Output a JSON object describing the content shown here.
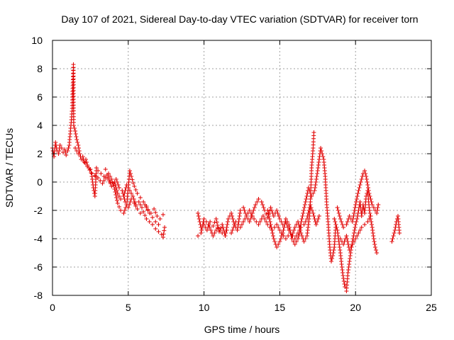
{
  "chart_data": {
    "type": "scatter",
    "title": "Day 107 of 2021, Sidereal Day-to-day VTEC variation (SDTVAR) for receiver torn",
    "xlabel": "GPS time / hours",
    "ylabel": "SDTVAR / TECUs",
    "xlim": [
      0,
      25
    ],
    "ylim": [
      -8,
      10
    ],
    "xticks": [
      "0",
      "5",
      "10",
      "15",
      "20",
      "25"
    ],
    "yticks": [
      "-8",
      "-6",
      "-4",
      "-2",
      "0",
      "2",
      "4",
      "6",
      "8",
      "10"
    ],
    "grid": true,
    "marker": "+",
    "color": "#e00000",
    "series": [
      {
        "name": "SDTVAR",
        "segments": [
          [
            [
              0.0,
              2.4
            ],
            [
              0.1,
              1.8
            ],
            [
              0.2,
              2.8
            ],
            [
              0.3,
              2.2
            ],
            [
              0.4,
              2.0
            ],
            [
              0.5,
              2.6
            ],
            [
              0.6,
              2.4
            ],
            [
              0.7,
              2.1
            ],
            [
              0.8,
              2.3
            ],
            [
              0.9,
              1.9
            ],
            [
              1.0,
              2.2
            ],
            [
              1.1,
              2.6
            ],
            [
              1.15,
              3.2
            ],
            [
              1.2,
              3.8
            ],
            [
              1.25,
              4.4
            ],
            [
              1.3,
              5.2
            ],
            [
              1.32,
              6.2
            ],
            [
              1.35,
              7.0
            ],
            [
              1.38,
              8.3
            ],
            [
              1.4,
              4.0
            ],
            [
              1.5,
              3.6
            ],
            [
              1.6,
              3.0
            ],
            [
              1.7,
              2.6
            ],
            [
              1.8,
              2.0
            ],
            [
              1.9,
              1.6
            ],
            [
              2.0,
              1.8
            ],
            [
              2.1,
              1.4
            ],
            [
              2.2,
              1.6
            ],
            [
              2.3,
              1.2
            ],
            [
              2.4,
              1.0
            ],
            [
              2.5,
              0.9
            ],
            [
              2.6,
              0.4
            ],
            [
              2.7,
              -0.4
            ],
            [
              2.8,
              -1.0
            ],
            [
              2.9,
              1.0
            ],
            [
              3.0,
              0.8
            ],
            [
              3.2,
              0.6
            ],
            [
              3.4,
              0.4
            ],
            [
              3.6,
              0.3
            ],
            [
              3.8,
              0.0
            ],
            [
              4.0,
              -0.1
            ],
            [
              4.2,
              0.2
            ],
            [
              4.4,
              -0.4
            ],
            [
              4.6,
              -0.6
            ],
            [
              4.8,
              -1.4
            ],
            [
              5.0,
              -1.8
            ],
            [
              5.2,
              -1.2
            ],
            [
              5.4,
              -1.5
            ],
            [
              5.6,
              -1.9
            ],
            [
              5.8,
              -2.2
            ],
            [
              6.0,
              -2.1
            ],
            [
              6.2,
              -2.6
            ],
            [
              6.4,
              -2.8
            ],
            [
              6.6,
              -3.0
            ],
            [
              6.8,
              -3.3
            ],
            [
              7.0,
              -3.5
            ],
            [
              7.2,
              -3.7
            ],
            [
              7.3,
              -3.9
            ],
            [
              7.4,
              -3.2
            ]
          ],
          [
            [
              1.5,
              2.4
            ],
            [
              1.7,
              2.0
            ],
            [
              2.0,
              1.6
            ],
            [
              2.3,
              1.1
            ],
            [
              2.6,
              0.6
            ],
            [
              3.0,
              0.3
            ],
            [
              3.3,
              -0.1
            ],
            [
              3.6,
              0.5
            ],
            [
              3.9,
              -0.3
            ],
            [
              4.1,
              0.0
            ],
            [
              4.3,
              -0.8
            ],
            [
              4.5,
              -1.2
            ],
            [
              4.7,
              -1.0
            ],
            [
              4.9,
              -0.2
            ],
            [
              5.1,
              -0.6
            ],
            [
              5.3,
              -1.0
            ],
            [
              5.5,
              -1.6
            ],
            [
              5.7,
              -1.4
            ],
            [
              5.9,
              -1.8
            ],
            [
              6.1,
              -1.6
            ],
            [
              6.3,
              -2.0
            ],
            [
              6.5,
              -2.2
            ],
            [
              6.7,
              -1.9
            ],
            [
              6.9,
              -2.4
            ],
            [
              7.1,
              -2.6
            ],
            [
              7.3,
              -2.3
            ]
          ],
          [
            [
              3.5,
              0.9
            ],
            [
              3.7,
              0.6
            ],
            [
              3.9,
              0.2
            ],
            [
              4.1,
              -0.5
            ],
            [
              4.3,
              -1.5
            ],
            [
              4.5,
              -2.0
            ],
            [
              4.7,
              -2.2
            ],
            [
              4.9,
              -1.6
            ],
            [
              5.1,
              0.8
            ],
            [
              5.2,
              0.4
            ],
            [
              5.4,
              -0.3
            ],
            [
              5.6,
              -0.8
            ],
            [
              5.8,
              -1.1
            ],
            [
              6.0,
              -1.4
            ],
            [
              6.2,
              -1.7
            ],
            [
              6.4,
              -2.2
            ],
            [
              6.6,
              -2.5
            ],
            [
              6.8,
              -2.8
            ],
            [
              7.0,
              -3.0
            ]
          ],
          [
            [
              9.6,
              -2.2
            ],
            [
              9.8,
              -3.2
            ],
            [
              10.0,
              -3.0
            ],
            [
              10.2,
              -3.4
            ],
            [
              10.4,
              -2.8
            ],
            [
              10.6,
              -3.1
            ],
            [
              10.8,
              -2.6
            ],
            [
              11.0,
              -3.5
            ],
            [
              11.2,
              -3.0
            ],
            [
              11.4,
              -3.8
            ],
            [
              11.6,
              -2.6
            ],
            [
              11.8,
              -2.2
            ],
            [
              12.0,
              -3.0
            ],
            [
              12.2,
              -3.4
            ],
            [
              12.4,
              -2.0
            ],
            [
              12.6,
              -1.8
            ],
            [
              12.8,
              -2.4
            ],
            [
              13.0,
              -2.8
            ],
            [
              13.2,
              -2.2
            ],
            [
              13.4,
              -1.6
            ],
            [
              13.6,
              -1.2
            ],
            [
              13.8,
              -1.4
            ],
            [
              14.0,
              -2.0
            ],
            [
              14.2,
              -2.5
            ],
            [
              14.4,
              -1.8
            ],
            [
              14.6,
              -2.4
            ],
            [
              14.8,
              -2.0
            ],
            [
              15.0,
              -2.6
            ],
            [
              15.2,
              -3.0
            ],
            [
              15.4,
              -2.8
            ],
            [
              15.6,
              -3.4
            ],
            [
              15.8,
              -3.8
            ],
            [
              16.0,
              -3.2
            ],
            [
              16.2,
              -2.8
            ],
            [
              16.4,
              -3.6
            ],
            [
              16.6,
              -4.2
            ],
            [
              16.8,
              -3.8
            ],
            [
              17.0,
              -2.0
            ],
            [
              17.1,
              1.0
            ],
            [
              17.2,
              2.4
            ],
            [
              17.25,
              3.5
            ]
          ],
          [
            [
              9.6,
              -3.8
            ],
            [
              9.8,
              -3.6
            ],
            [
              10.0,
              -2.6
            ],
            [
              10.3,
              -3.0
            ],
            [
              10.6,
              -3.8
            ],
            [
              10.9,
              -3.2
            ],
            [
              11.2,
              -3.6
            ],
            [
              11.5,
              -3.4
            ],
            [
              11.8,
              -3.6
            ],
            [
              12.1,
              -2.8
            ],
            [
              12.4,
              -3.2
            ],
            [
              12.7,
              -2.6
            ],
            [
              13.0,
              -2.0
            ],
            [
              13.3,
              -2.6
            ],
            [
              13.6,
              -3.0
            ],
            [
              13.9,
              -2.4
            ],
            [
              14.2,
              -3.0
            ],
            [
              14.5,
              -3.4
            ],
            [
              14.8,
              -3.0
            ],
            [
              15.1,
              -3.6
            ],
            [
              15.4,
              -4.0
            ],
            [
              15.7,
              -3.6
            ],
            [
              16.0,
              -4.0
            ],
            [
              16.3,
              -3.4
            ],
            [
              16.5,
              -2.4
            ],
            [
              16.7,
              -1.4
            ],
            [
              16.9,
              -0.4
            ],
            [
              17.1,
              -1.0
            ],
            [
              17.3,
              -0.6
            ],
            [
              17.5,
              0.8
            ],
            [
              17.7,
              2.4
            ],
            [
              17.9,
              1.6
            ],
            [
              18.0,
              0.4
            ],
            [
              18.1,
              -1.6
            ],
            [
              18.2,
              -3.0
            ],
            [
              18.3,
              -4.6
            ],
            [
              18.4,
              -5.6
            ],
            [
              18.5,
              -5.2
            ],
            [
              18.6,
              -4.6
            ],
            [
              18.7,
              -3.0
            ]
          ],
          [
            [
              14.2,
              -2.0
            ],
            [
              14.4,
              -3.0
            ],
            [
              14.6,
              -4.0
            ],
            [
              14.8,
              -4.6
            ],
            [
              15.0,
              -4.2
            ],
            [
              15.2,
              -3.6
            ],
            [
              15.4,
              -2.6
            ],
            [
              15.6,
              -3.0
            ],
            [
              15.8,
              -4.0
            ],
            [
              16.0,
              -4.4
            ],
            [
              16.2,
              -4.0
            ],
            [
              16.4,
              -3.2
            ],
            [
              16.6,
              -3.0
            ],
            [
              16.8,
              -2.6
            ],
            [
              17.0,
              -1.6
            ],
            [
              17.2,
              -2.2
            ],
            [
              17.4,
              -3.0
            ],
            [
              17.6,
              -2.4
            ]
          ],
          [
            [
              18.6,
              -2.6
            ],
            [
              18.8,
              -3.4
            ],
            [
              19.0,
              -5.0
            ],
            [
              19.1,
              -6.0
            ],
            [
              19.2,
              -6.8
            ],
            [
              19.3,
              -7.4
            ],
            [
              19.4,
              -7.7
            ],
            [
              19.5,
              -6.4
            ],
            [
              19.6,
              -5.6
            ],
            [
              19.7,
              -4.8
            ],
            [
              19.8,
              -4.2
            ],
            [
              19.9,
              -3.6
            ],
            [
              20.0,
              -3.0
            ],
            [
              20.1,
              -2.6
            ],
            [
              20.2,
              -2.0
            ],
            [
              20.3,
              -1.4
            ],
            [
              20.4,
              -2.4
            ],
            [
              20.5,
              -1.6
            ],
            [
              20.6,
              -2.2
            ],
            [
              20.7,
              -1.0
            ],
            [
              20.8,
              -0.6
            ],
            [
              20.9,
              -1.8
            ],
            [
              21.0,
              -2.6
            ],
            [
              21.1,
              -3.2
            ],
            [
              21.2,
              -4.0
            ],
            [
              21.3,
              -4.6
            ],
            [
              21.4,
              -5.0
            ]
          ],
          [
            [
              18.8,
              -1.8
            ],
            [
              19.0,
              -2.6
            ],
            [
              19.2,
              -3.2
            ],
            [
              19.4,
              -3.0
            ],
            [
              19.6,
              -2.4
            ],
            [
              19.8,
              -2.8
            ],
            [
              20.0,
              -1.6
            ],
            [
              20.2,
              -0.6
            ],
            [
              20.4,
              0.2
            ],
            [
              20.5,
              0.6
            ],
            [
              20.6,
              0.8
            ],
            [
              20.7,
              0.4
            ],
            [
              20.8,
              -0.2
            ],
            [
              20.9,
              -0.8
            ],
            [
              21.0,
              -1.2
            ],
            [
              21.1,
              -1.6
            ],
            [
              21.2,
              -1.8
            ],
            [
              21.3,
              -2.0
            ],
            [
              21.4,
              -2.2
            ],
            [
              21.5,
              -1.6
            ]
          ],
          [
            [
              19.0,
              -4.0
            ],
            [
              19.2,
              -4.4
            ],
            [
              19.4,
              -3.8
            ],
            [
              19.6,
              -4.8
            ],
            [
              19.8,
              -4.4
            ],
            [
              20.0,
              -4.0
            ],
            [
              20.2,
              -3.6
            ],
            [
              20.4,
              -3.2
            ],
            [
              20.6,
              -3.0
            ],
            [
              20.8,
              -2.8
            ],
            [
              21.0,
              -2.4
            ]
          ],
          [
            [
              22.4,
              -4.2
            ],
            [
              22.5,
              -3.8
            ],
            [
              22.6,
              -3.4
            ],
            [
              22.7,
              -2.8
            ],
            [
              22.8,
              -2.4
            ],
            [
              22.85,
              -3.0
            ],
            [
              22.9,
              -3.6
            ]
          ]
        ]
      }
    ]
  }
}
